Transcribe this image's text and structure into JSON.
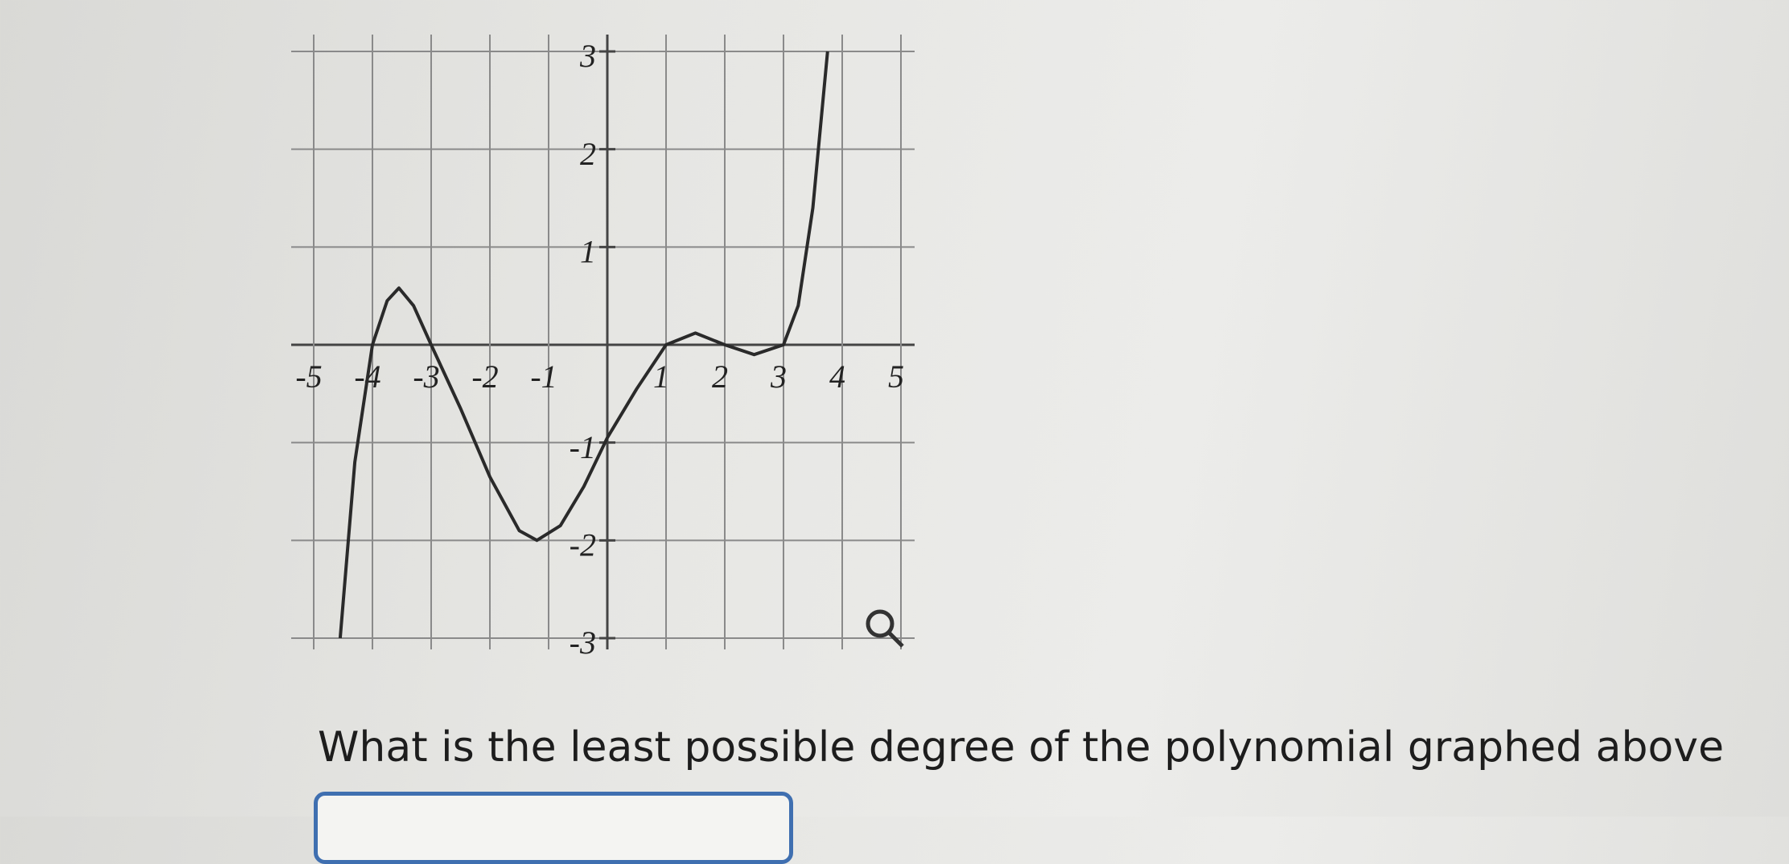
{
  "chart_data": {
    "type": "line",
    "x": [
      -4.55,
      -4.3,
      -4,
      -3.75,
      -3.55,
      -3.3,
      -3,
      -2.5,
      -2,
      -1.5,
      -1.2,
      -0.8,
      -0.4,
      0,
      0.5,
      1,
      1.5,
      2,
      2.5,
      3,
      3.25,
      3.5,
      3.75
    ],
    "y": [
      -3,
      -1.2,
      0,
      0.45,
      0.58,
      0.4,
      0,
      -0.65,
      -1.35,
      -1.9,
      -2.0,
      -1.85,
      -1.45,
      -0.95,
      -0.45,
      0,
      0.12,
      0,
      -0.1,
      0,
      0.4,
      1.4,
      3
    ],
    "color": "#2a2a2a",
    "xlim": [
      -5,
      5
    ],
    "ylim": [
      -3,
      3
    ],
    "xticks": [
      -5,
      -4,
      -3,
      -2,
      -1,
      1,
      2,
      3,
      4,
      5
    ],
    "yticks": [
      -3,
      -2,
      -1,
      1,
      2,
      3
    ],
    "grid": true
  },
  "question": "What is the least possible degree of the polynomial graphed above"
}
